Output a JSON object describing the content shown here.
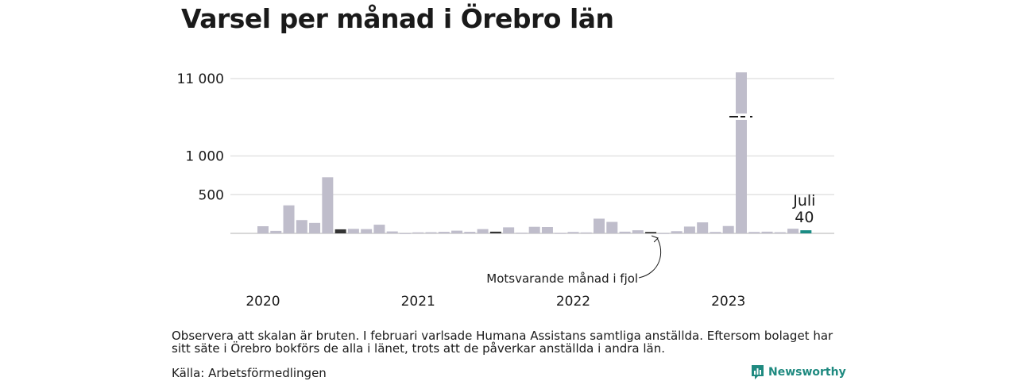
{
  "chart_data": {
    "type": "bar",
    "title": "Varsel per månad i Örebro län",
    "xlabel": "",
    "ylabel": "",
    "scale": "broken",
    "ylim": [
      0,
      12500
    ],
    "yticks": [
      {
        "value": 500,
        "label": "500"
      },
      {
        "value": 1000,
        "label": "1 000"
      },
      {
        "value": 11000,
        "label": "11 000"
      }
    ],
    "year_labels": [
      {
        "label": "2020",
        "month_index": 0
      },
      {
        "label": "2021",
        "month_index": 12
      },
      {
        "label": "2022",
        "month_index": 24
      },
      {
        "label": "2023",
        "month_index": 36
      }
    ],
    "categories": [
      "2020-01",
      "2020-02",
      "2020-03",
      "2020-04",
      "2020-05",
      "2020-06",
      "2020-07",
      "2020-08",
      "2020-09",
      "2020-10",
      "2020-11",
      "2020-12",
      "2021-01",
      "2021-02",
      "2021-03",
      "2021-04",
      "2021-05",
      "2021-06",
      "2021-07",
      "2021-08",
      "2021-09",
      "2021-10",
      "2021-11",
      "2021-12",
      "2022-01",
      "2022-02",
      "2022-03",
      "2022-04",
      "2022-05",
      "2022-06",
      "2022-07",
      "2022-08",
      "2022-09",
      "2022-10",
      "2022-11",
      "2022-12",
      "2023-01",
      "2023-02",
      "2023-03",
      "2023-04",
      "2023-05",
      "2023-06",
      "2023-07"
    ],
    "values": [
      92,
      32,
      362,
      172,
      135,
      725,
      52,
      58,
      55,
      112,
      25,
      2,
      13,
      15,
      20,
      35,
      20,
      55,
      22,
      78,
      8,
      85,
      82,
      4,
      18,
      12,
      190,
      148,
      22,
      40,
      18,
      3,
      28,
      88,
      142,
      18,
      95,
      11800,
      18,
      22,
      15,
      60,
      40
    ],
    "highlight": {
      "same_month_indices": [
        6,
        18,
        30
      ],
      "current_index": 42
    },
    "colors": {
      "bar": "#bfbdcb",
      "same_month_last_year": "#333333",
      "current": "#1a8c84",
      "grid": "#dddddd",
      "axis": "#cccccc"
    },
    "annotations": {
      "current_month": "Juli",
      "current_value": "40",
      "same_month_label": "Motsvarande månad i fjol"
    }
  },
  "note": "Observera att skalan är bruten. I februari varlsade Humana Assistans samtliga anställda. Eftersom bolaget har sitt säte i Örebro bokförs de alla i länet, trots att de påverkar anställda i andra län.",
  "source": "Källa: Arbetsförmedlingen",
  "brand": {
    "name": "Newsworthy",
    "icon": "newsworthy-logo-icon",
    "color": "#1f8a80"
  }
}
